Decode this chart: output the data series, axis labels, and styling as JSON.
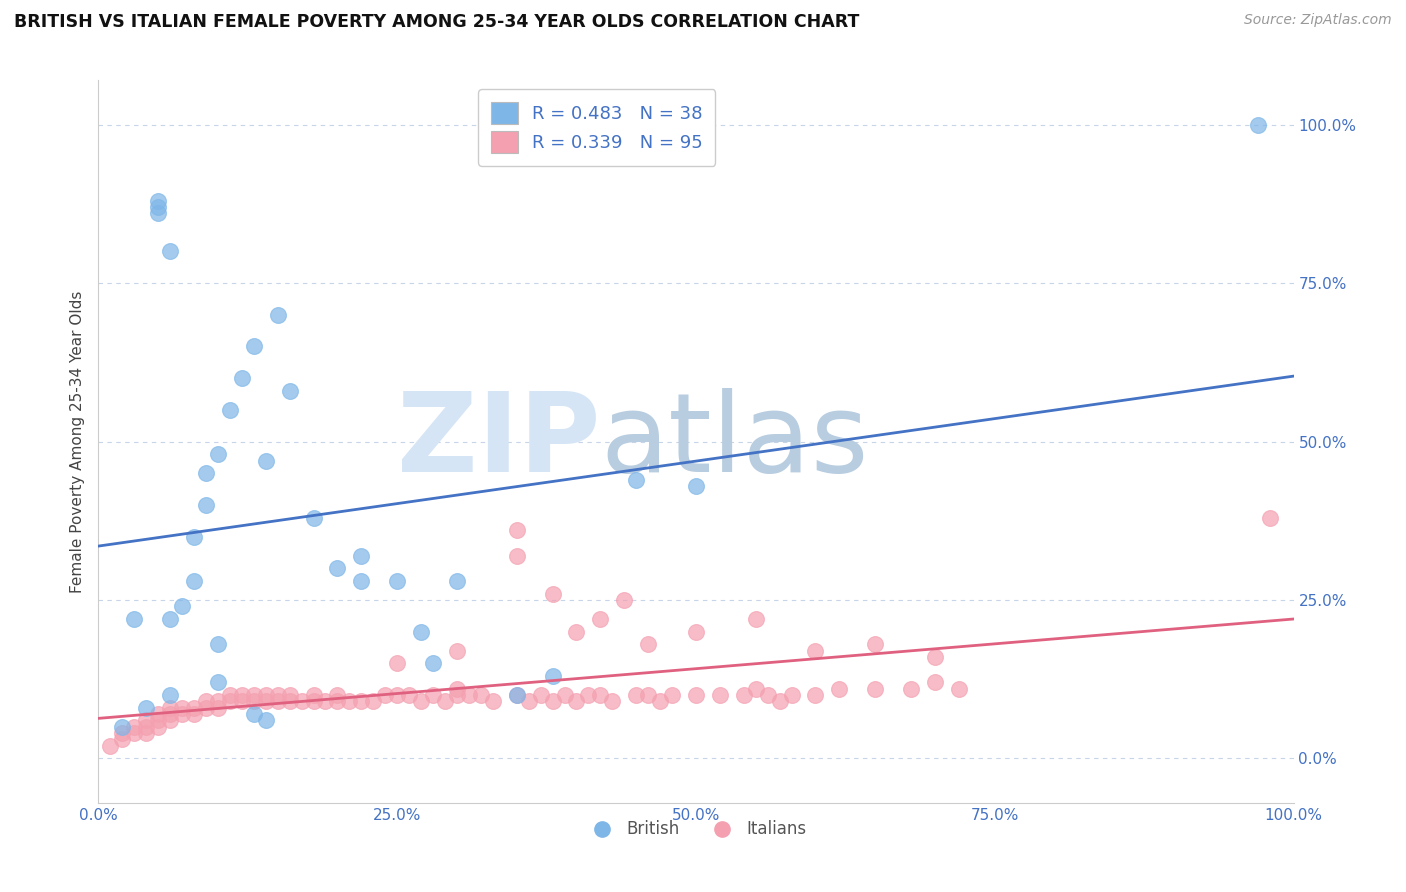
{
  "title": "BRITISH VS ITALIAN FEMALE POVERTY AMONG 25-34 YEAR OLDS CORRELATION CHART",
  "source": "Source: ZipAtlas.com",
  "ylabel": "Female Poverty Among 25-34 Year Olds",
  "xlim": [
    0,
    1.0
  ],
  "ylim": [
    -0.07,
    1.07
  ],
  "british_color": "#7EB6E8",
  "british_edge": "#5A9FD4",
  "italian_color": "#F4A0B0",
  "italian_edge": "#E07890",
  "british_R": 0.483,
  "british_N": 38,
  "italian_R": 0.339,
  "italian_N": 95,
  "legend_text_color": "#4472C4",
  "bg_color": "#FFFFFF",
  "grid_color": "#C8D4E8",
  "tick_color": "#4472C4",
  "british_line_color": "#4472C4",
  "italian_line_color": "#E06080",
  "british_x": [
    0.02,
    0.03,
    0.04,
    0.05,
    0.05,
    0.06,
    0.06,
    0.07,
    0.08,
    0.08,
    0.09,
    0.1,
    0.1,
    0.11,
    0.12,
    0.13,
    0.14,
    0.15,
    0.16,
    0.18,
    0.2,
    0.22,
    0.25,
    0.27,
    0.3,
    0.35,
    0.09,
    0.1,
    0.28,
    0.22,
    0.13,
    0.14,
    0.05,
    0.06,
    0.38,
    0.45,
    0.97,
    0.5
  ],
  "british_y": [
    0.05,
    0.22,
    0.08,
    0.86,
    0.87,
    0.1,
    0.22,
    0.24,
    0.28,
    0.35,
    0.4,
    0.12,
    0.48,
    0.55,
    0.6,
    0.65,
    0.47,
    0.7,
    0.58,
    0.38,
    0.3,
    0.28,
    0.28,
    0.2,
    0.28,
    0.1,
    0.45,
    0.18,
    0.15,
    0.32,
    0.07,
    0.06,
    0.88,
    0.8,
    0.13,
    0.44,
    1.0,
    0.43
  ],
  "italian_x": [
    0.01,
    0.02,
    0.02,
    0.03,
    0.03,
    0.04,
    0.04,
    0.04,
    0.05,
    0.05,
    0.05,
    0.06,
    0.06,
    0.06,
    0.07,
    0.07,
    0.08,
    0.08,
    0.09,
    0.09,
    0.1,
    0.1,
    0.11,
    0.11,
    0.12,
    0.12,
    0.13,
    0.13,
    0.14,
    0.14,
    0.15,
    0.15,
    0.16,
    0.16,
    0.17,
    0.18,
    0.18,
    0.19,
    0.2,
    0.2,
    0.21,
    0.22,
    0.23,
    0.24,
    0.25,
    0.26,
    0.27,
    0.28,
    0.29,
    0.3,
    0.3,
    0.31,
    0.32,
    0.33,
    0.35,
    0.36,
    0.37,
    0.38,
    0.39,
    0.4,
    0.41,
    0.42,
    0.43,
    0.45,
    0.46,
    0.47,
    0.48,
    0.5,
    0.52,
    0.54,
    0.55,
    0.56,
    0.57,
    0.58,
    0.6,
    0.62,
    0.65,
    0.68,
    0.7,
    0.72,
    0.38,
    0.4,
    0.42,
    0.44,
    0.46,
    0.5,
    0.55,
    0.6,
    0.65,
    0.7,
    0.35,
    0.25,
    0.3,
    0.35,
    0.98
  ],
  "italian_y": [
    0.02,
    0.03,
    0.04,
    0.04,
    0.05,
    0.04,
    0.05,
    0.06,
    0.05,
    0.06,
    0.07,
    0.06,
    0.07,
    0.08,
    0.07,
    0.08,
    0.07,
    0.08,
    0.08,
    0.09,
    0.08,
    0.09,
    0.09,
    0.1,
    0.09,
    0.1,
    0.09,
    0.1,
    0.09,
    0.1,
    0.09,
    0.1,
    0.09,
    0.1,
    0.09,
    0.09,
    0.1,
    0.09,
    0.09,
    0.1,
    0.09,
    0.09,
    0.09,
    0.1,
    0.1,
    0.1,
    0.09,
    0.1,
    0.09,
    0.1,
    0.11,
    0.1,
    0.1,
    0.09,
    0.1,
    0.09,
    0.1,
    0.09,
    0.1,
    0.09,
    0.1,
    0.1,
    0.09,
    0.1,
    0.1,
    0.09,
    0.1,
    0.1,
    0.1,
    0.1,
    0.11,
    0.1,
    0.09,
    0.1,
    0.1,
    0.11,
    0.11,
    0.11,
    0.12,
    0.11,
    0.26,
    0.2,
    0.22,
    0.25,
    0.18,
    0.2,
    0.22,
    0.17,
    0.18,
    0.16,
    0.36,
    0.15,
    0.17,
    0.32,
    0.38
  ]
}
